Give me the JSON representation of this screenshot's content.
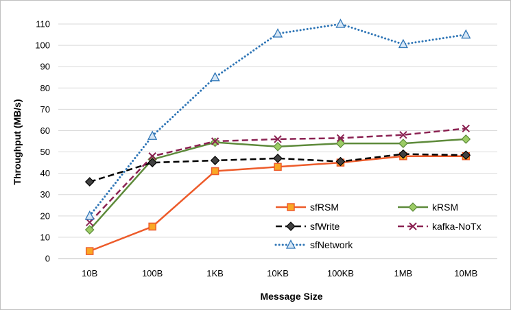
{
  "chart_data": {
    "type": "line",
    "xlabel": "Message Size",
    "ylabel": "Throughput (MB/s)",
    "categories": [
      "10B",
      "100B",
      "1KB",
      "10KB",
      "100KB",
      "1MB",
      "10MB"
    ],
    "ylim": [
      0,
      110
    ],
    "ytick_step": 10,
    "grid": "horizontal",
    "legend_position": "bottom-right",
    "series": [
      {
        "name": "sfRSM",
        "color": "#ed5b2a",
        "style": "solid",
        "marker": "square",
        "marker_fill": "#f9a825",
        "values": [
          3.5,
          15,
          41,
          43,
          45,
          48,
          48
        ]
      },
      {
        "name": "kRSM",
        "color": "#5d8a3a",
        "style": "solid",
        "marker": "diamond",
        "marker_fill": "#9ccc65",
        "values": [
          13.5,
          46.5,
          54.5,
          52.5,
          54,
          54,
          56
        ]
      },
      {
        "name": "sfWrite",
        "color": "#000000",
        "style": "dashed",
        "marker": "diamond",
        "marker_fill": "#404040",
        "values": [
          36,
          45,
          46,
          47,
          45.5,
          49,
          48.5
        ]
      },
      {
        "name": "kafka-NoTx",
        "color": "#8b2252",
        "style": "dashed",
        "marker": "x",
        "marker_fill": "#8b2252",
        "values": [
          17,
          48,
          55,
          56,
          56.5,
          58,
          61
        ]
      },
      {
        "name": "sfNetwork",
        "color": "#2e75b6",
        "style": "dotted",
        "marker": "triangle",
        "marker_fill": "#d6e6f5",
        "values": [
          20,
          57.5,
          85,
          105.5,
          110,
          100.5,
          105
        ]
      }
    ]
  }
}
